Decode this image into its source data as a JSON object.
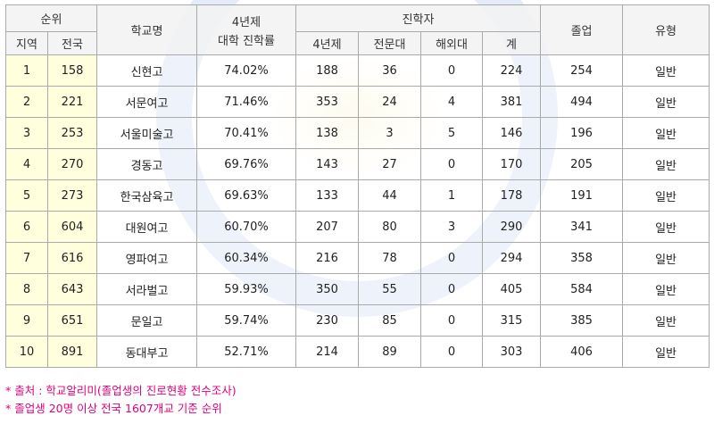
{
  "header": {
    "rank": "순위",
    "region": "지역",
    "nation": "전국",
    "school": "학교명",
    "rate_line1": "4년제",
    "rate_line2": "대학 진학률",
    "admission": "진학자",
    "four_year": "4년제",
    "junior": "전문대",
    "overseas": "해외대",
    "total": "계",
    "graduates": "졸업",
    "type": "유형"
  },
  "rows": [
    {
      "region": "1",
      "nation": "158",
      "school": "신현고",
      "rate": "74.02%",
      "four_year": "188",
      "junior": "36",
      "overseas": "0",
      "total": "224",
      "graduates": "254",
      "type": "일반"
    },
    {
      "region": "2",
      "nation": "221",
      "school": "서문여고",
      "rate": "71.46%",
      "four_year": "353",
      "junior": "24",
      "overseas": "4",
      "total": "381",
      "graduates": "494",
      "type": "일반"
    },
    {
      "region": "3",
      "nation": "253",
      "school": "서울미술고",
      "rate": "70.41%",
      "four_year": "138",
      "junior": "3",
      "overseas": "5",
      "total": "146",
      "graduates": "196",
      "type": "일반"
    },
    {
      "region": "4",
      "nation": "270",
      "school": "경동고",
      "rate": "69.76%",
      "four_year": "143",
      "junior": "27",
      "overseas": "0",
      "total": "170",
      "graduates": "205",
      "type": "일반"
    },
    {
      "region": "5",
      "nation": "273",
      "school": "한국삼육고",
      "rate": "69.63%",
      "four_year": "133",
      "junior": "44",
      "overseas": "1",
      "total": "178",
      "graduates": "191",
      "type": "일반"
    },
    {
      "region": "6",
      "nation": "604",
      "school": "대원여고",
      "rate": "60.70%",
      "four_year": "207",
      "junior": "80",
      "overseas": "3",
      "total": "290",
      "graduates": "341",
      "type": "일반"
    },
    {
      "region": "7",
      "nation": "616",
      "school": "영파여고",
      "rate": "60.34%",
      "four_year": "216",
      "junior": "78",
      "overseas": "0",
      "total": "294",
      "graduates": "358",
      "type": "일반"
    },
    {
      "region": "8",
      "nation": "643",
      "school": "서라벌고",
      "rate": "59.93%",
      "four_year": "350",
      "junior": "55",
      "overseas": "0",
      "total": "405",
      "graduates": "584",
      "type": "일반"
    },
    {
      "region": "9",
      "nation": "651",
      "school": "문일고",
      "rate": "59.74%",
      "four_year": "230",
      "junior": "85",
      "overseas": "0",
      "total": "315",
      "graduates": "385",
      "type": "일반"
    },
    {
      "region": "10",
      "nation": "891",
      "school": "동대부고",
      "rate": "52.71%",
      "four_year": "214",
      "junior": "89",
      "overseas": "0",
      "total": "303",
      "graduates": "406",
      "type": "일반"
    }
  ],
  "notes": {
    "source": "* 출처 : 학교알리미(졸업생의 진로현황 전수조사)",
    "criteria": "* 졸업생 20명 이상 전국 1607개교 기준 순위"
  },
  "colors": {
    "rank_cell": "#ffffda",
    "note_text": "#e0007a",
    "header_bg": "#f2f2f2"
  }
}
